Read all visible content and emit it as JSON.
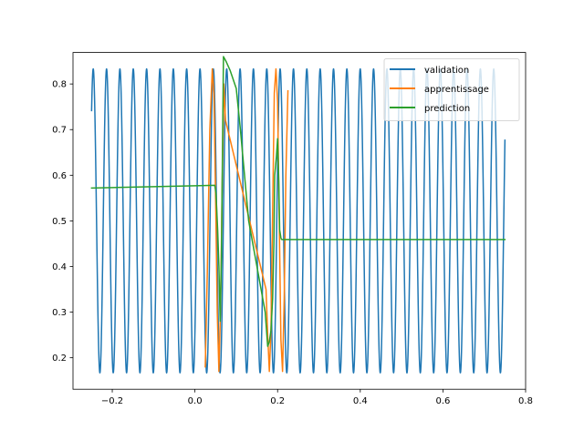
{
  "chart_data": {
    "type": "line",
    "xlim": [
      -0.295,
      0.8
    ],
    "ylim": [
      0.131,
      0.869
    ],
    "x_ticks": [
      {
        "value": -0.2,
        "label": "−0.2"
      },
      {
        "value": 0.0,
        "label": "0.0"
      },
      {
        "value": 0.2,
        "label": "0.2"
      },
      {
        "value": 0.4,
        "label": "0.4"
      },
      {
        "value": 0.6,
        "label": "0.6"
      },
      {
        "value": 0.8,
        "label": "0.8"
      }
    ],
    "y_ticks": [
      {
        "value": 0.2,
        "label": "0.2"
      },
      {
        "value": 0.3,
        "label": "0.3"
      },
      {
        "value": 0.4,
        "label": "0.4"
      },
      {
        "value": 0.5,
        "label": "0.5"
      },
      {
        "value": 0.6,
        "label": "0.6"
      },
      {
        "value": 0.7,
        "label": "0.7"
      },
      {
        "value": 0.8,
        "label": "0.8"
      }
    ],
    "grid": false,
    "legend_position": "top-right",
    "series": [
      {
        "name": "validation",
        "color": "#1f77b4",
        "function": "0.5 + 0.333*cos(2*pi*(x - 0.2384)/0.0323)",
        "x_range": [
          -0.25,
          0.75
        ],
        "description_values": {
          "period": 0.0323,
          "min": 0.167,
          "max": 0.833
        }
      },
      {
        "name": "apprentissage",
        "color": "#ff7f0e",
        "x": [
          0.025,
          0.03,
          0.036,
          0.042,
          0.046,
          0.05,
          0.054,
          0.058,
          0.062,
          0.066,
          0.07,
          0.074,
          0.172,
          0.176,
          0.18,
          0.184,
          0.188,
          0.192,
          0.196,
          0.2,
          0.204,
          0.208,
          0.212,
          0.216,
          0.22,
          0.225
        ],
        "y": [
          0.18,
          0.39,
          0.7,
          0.833,
          0.78,
          0.55,
          0.3,
          0.17,
          0.31,
          0.58,
          0.8,
          0.72,
          0.35,
          0.25,
          0.17,
          0.26,
          0.52,
          0.78,
          0.833,
          0.76,
          0.5,
          0.24,
          0.17,
          0.33,
          0.6,
          0.785
        ]
      },
      {
        "name": "prediction",
        "color": "#2ca02c",
        "x": [
          -0.25,
          -0.2,
          -0.1,
          0.0,
          0.048,
          0.051,
          0.055,
          0.058,
          0.061,
          0.064,
          0.069,
          0.075,
          0.085,
          0.1,
          0.11,
          0.12,
          0.13,
          0.15,
          0.17,
          0.176,
          0.18,
          0.184,
          0.188,
          0.191,
          0.193,
          0.197,
          0.2,
          0.203,
          0.205,
          0.208,
          0.209,
          0.21,
          0.25,
          0.3,
          0.4,
          0.5,
          0.6,
          0.7,
          0.75
        ],
        "y": [
          0.572,
          0.573,
          0.575,
          0.577,
          0.578,
          0.56,
          0.48,
          0.4,
          0.28,
          0.42,
          0.86,
          0.85,
          0.83,
          0.79,
          0.7,
          0.6,
          0.5,
          0.4,
          0.3,
          0.225,
          0.235,
          0.26,
          0.33,
          0.45,
          0.6,
          0.64,
          0.68,
          0.58,
          0.48,
          0.463,
          0.46,
          0.459,
          0.459,
          0.459,
          0.459,
          0.459,
          0.459,
          0.459,
          0.459
        ]
      }
    ]
  }
}
